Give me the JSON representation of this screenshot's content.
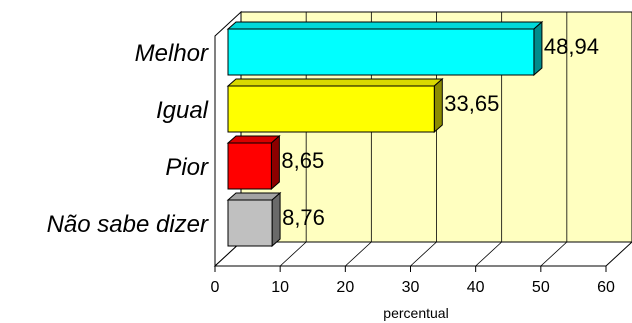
{
  "chart_data": {
    "type": "bar",
    "orientation": "horizontal",
    "categories": [
      "Melhor",
      "Igual",
      "Pior",
      "Não sabe dizer"
    ],
    "values": [
      48.94,
      33.65,
      8.65,
      8.76
    ],
    "value_labels": [
      "48,94",
      "33,65",
      "8,65",
      "8,76"
    ],
    "bar_colors": [
      "#00ffff",
      "#ffff00",
      "#ff0000",
      "#c0c0c0"
    ],
    "xlabel": "percentual",
    "xlim": [
      0,
      60
    ],
    "xticks": [
      "0",
      "10",
      "20",
      "30",
      "40",
      "50",
      "60"
    ],
    "plot_background": "#ffffc0",
    "grid": true,
    "three_d": true
  }
}
